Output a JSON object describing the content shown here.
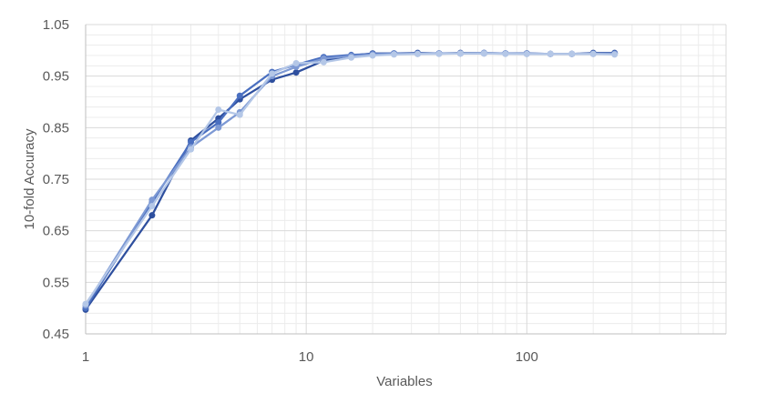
{
  "chart_data": {
    "type": "line",
    "title": "",
    "xlabel": "Variables",
    "ylabel": "10-fold Accuracy",
    "xscale": "log",
    "xlim": [
      1,
      800
    ],
    "ylim": [
      0.45,
      1.05
    ],
    "xticks": [
      1,
      10,
      100
    ],
    "xtick_labels": [
      "1",
      "10",
      "100"
    ],
    "yticks": [
      0.45,
      0.55,
      0.65,
      0.75,
      0.85,
      0.95,
      1.05
    ],
    "ytick_labels": [
      "0.45",
      "0.55",
      "0.65",
      "0.75",
      "0.85",
      "0.95",
      "1.05"
    ],
    "grid": true,
    "legend": "none",
    "colors": [
      "#2e4f9e",
      "#4a6fc0",
      "#7d99d4",
      "#b4c7e7"
    ],
    "x": [
      1,
      2,
      3,
      4,
      5,
      7,
      9,
      12,
      16,
      20,
      25,
      32,
      40,
      50,
      64,
      80,
      100,
      128,
      160,
      200,
      250
    ],
    "series": [
      {
        "values": [
          0.497,
          0.68,
          0.825,
          0.868,
          0.905,
          0.943,
          0.957,
          0.98,
          0.99,
          0.994,
          0.994,
          0.995,
          0.994,
          0.995,
          0.995,
          0.994,
          0.994,
          0.993,
          0.993,
          0.995,
          0.995
        ]
      },
      {
        "values": [
          0.5,
          0.705,
          0.822,
          0.86,
          0.912,
          0.958,
          0.972,
          0.987,
          0.991,
          0.993,
          0.994,
          0.994,
          0.994,
          0.994,
          0.994,
          0.994,
          0.994,
          0.993,
          0.993,
          0.994,
          0.994
        ]
      },
      {
        "values": [
          0.505,
          0.71,
          0.812,
          0.85,
          0.88,
          0.95,
          0.968,
          0.984,
          0.989,
          0.992,
          0.993,
          0.993,
          0.994,
          0.994,
          0.995,
          0.994,
          0.993,
          0.993,
          0.993,
          0.993,
          0.993
        ]
      },
      {
        "values": [
          0.508,
          0.698,
          0.808,
          0.885,
          0.875,
          0.955,
          0.975,
          0.977,
          0.986,
          0.99,
          0.992,
          0.993,
          0.993,
          0.994,
          0.994,
          0.993,
          0.993,
          0.993,
          0.993,
          0.993,
          0.992
        ]
      }
    ]
  }
}
